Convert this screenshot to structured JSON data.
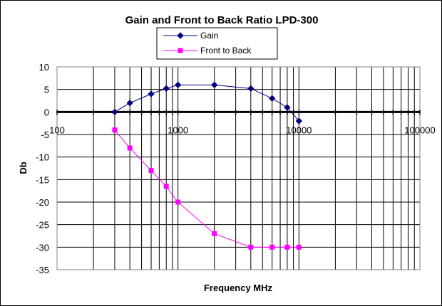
{
  "chart_data": {
    "type": "line",
    "title": "Gain and Front to Back Ratio LPD-300",
    "xlabel": "Frequency MHz",
    "ylabel": "Db",
    "x_scale": "log",
    "xlim": [
      100,
      100000
    ],
    "ylim": [
      -35,
      10
    ],
    "x_ticks": [
      "100",
      "1000",
      "10000",
      "100000"
    ],
    "y_ticks": [
      "10",
      "5",
      "0",
      "-5",
      "-10",
      "-15",
      "-20",
      "-25",
      "-30",
      "-35"
    ],
    "grid": true,
    "legend_position": "top-center",
    "series": [
      {
        "name": "Gain",
        "color": "#000080",
        "marker": "diamond",
        "x": [
          300,
          400,
          600,
          800,
          1000,
          2000,
          4000,
          6000,
          8000,
          10000
        ],
        "y": [
          0,
          2,
          4,
          5.2,
          6,
          6,
          5.2,
          3,
          1,
          -2
        ]
      },
      {
        "name": "Front to Back",
        "color": "#ff00ff",
        "marker": "square",
        "x": [
          300,
          400,
          600,
          800,
          1000,
          2000,
          4000,
          6000,
          8000,
          10000
        ],
        "y": [
          -4,
          -8,
          -13,
          -16.5,
          -20,
          -27,
          -30,
          -30,
          -30,
          -30
        ]
      }
    ]
  }
}
